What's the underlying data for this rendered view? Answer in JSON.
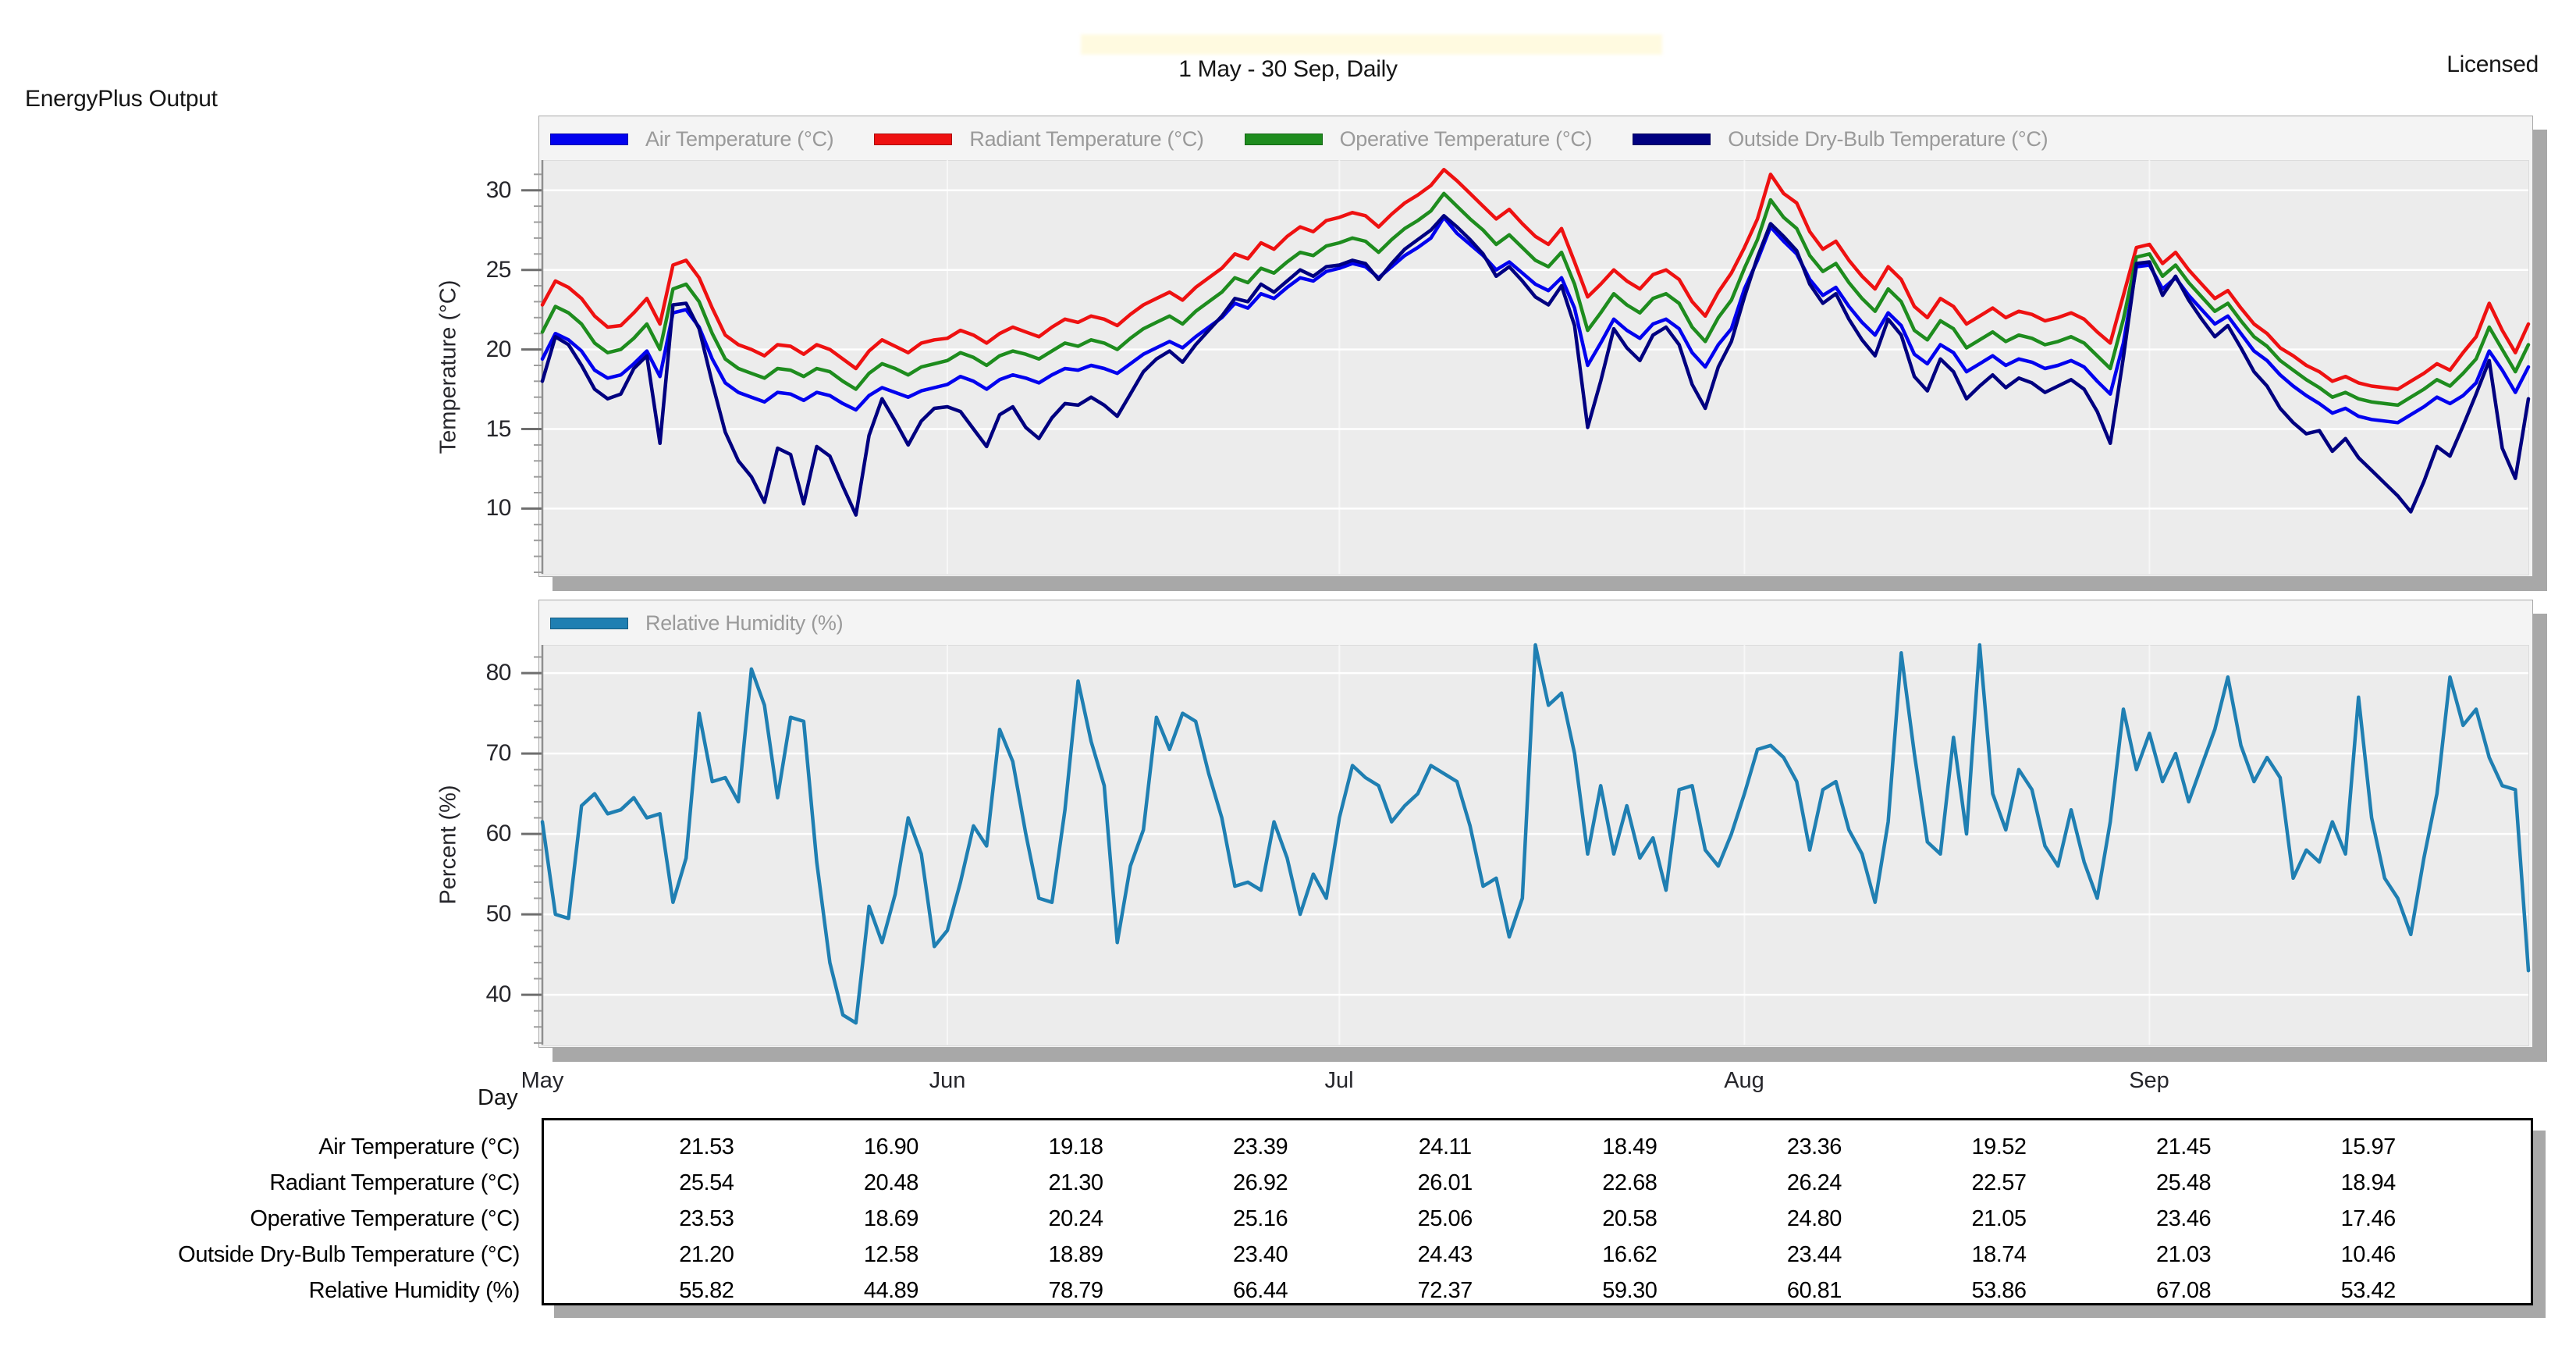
{
  "header": {
    "app_label": "EnergyPlus Output",
    "period_title": "1 May - 30 Sep, Daily",
    "license_status": "Licensed"
  },
  "x_axis": {
    "title": "Day",
    "tick_labels": [
      "May",
      "Jun",
      "Jul",
      "Aug",
      "Sep"
    ]
  },
  "table": {
    "rows": [
      {
        "label": "Air Temperature (°C)",
        "values": [
          "21.53",
          "16.90",
          "19.18",
          "23.39",
          "24.11",
          "18.49",
          "23.36",
          "19.52",
          "21.45",
          "15.97"
        ]
      },
      {
        "label": "Radiant Temperature (°C)",
        "values": [
          "25.54",
          "20.48",
          "21.30",
          "26.92",
          "26.01",
          "22.68",
          "26.24",
          "22.57",
          "25.48",
          "18.94"
        ]
      },
      {
        "label": "Operative Temperature (°C)",
        "values": [
          "23.53",
          "18.69",
          "20.24",
          "25.16",
          "25.06",
          "20.58",
          "24.80",
          "21.05",
          "23.46",
          "17.46"
        ]
      },
      {
        "label": "Outside Dry-Bulb Temperature (°C)",
        "values": [
          "21.20",
          "12.58",
          "18.89",
          "23.40",
          "24.43",
          "16.62",
          "23.44",
          "18.74",
          "21.03",
          "10.46"
        ]
      },
      {
        "label": "Relative Humidity (%)",
        "values": [
          "55.82",
          "44.89",
          "78.79",
          "66.44",
          "72.37",
          "59.30",
          "60.81",
          "53.86",
          "67.08",
          "53.42"
        ]
      }
    ]
  },
  "chart_data": [
    {
      "type": "line",
      "title": "",
      "legend_position": "top-left",
      "grid": true,
      "x": {
        "unit": "day",
        "start": "1 May",
        "end": "30 Sep",
        "days_total": 153,
        "month_start_day_index": [
          0,
          31,
          61,
          92,
          123
        ],
        "month_labels": [
          "May",
          "Jun",
          "Jul",
          "Aug",
          "Sep"
        ]
      },
      "y_axis": {
        "title": "Temperature (°C)",
        "ticks": [
          30,
          25,
          20,
          15,
          10
        ],
        "range": [
          5.9,
          31.9
        ],
        "minor_step": 1
      },
      "series": [
        {
          "name": "Air Temperature (°C)",
          "color": "#0202ee",
          "values": [
            19.4,
            21.0,
            20.6,
            19.9,
            18.7,
            18.2,
            18.4,
            19.1,
            19.9,
            18.3,
            22.3,
            22.5,
            21.4,
            19.4,
            17.9,
            17.3,
            17.0,
            16.7,
            17.3,
            17.2,
            16.8,
            17.3,
            17.1,
            16.6,
            16.2,
            17.1,
            17.6,
            17.3,
            17.0,
            17.4,
            17.6,
            17.8,
            18.3,
            18.0,
            17.5,
            18.1,
            18.4,
            18.2,
            17.9,
            18.4,
            18.8,
            18.7,
            19.0,
            18.8,
            18.5,
            19.1,
            19.7,
            20.1,
            20.5,
            20.1,
            20.8,
            21.4,
            22.0,
            22.9,
            22.6,
            23.5,
            23.2,
            23.9,
            24.5,
            24.3,
            24.9,
            25.1,
            25.4,
            25.2,
            24.5,
            25.2,
            25.9,
            26.4,
            27.0,
            28.3,
            27.3,
            26.6,
            25.9,
            25.0,
            25.5,
            24.8,
            24.1,
            23.7,
            24.5,
            22.6,
            19.0,
            20.4,
            21.9,
            21.2,
            20.7,
            21.6,
            21.9,
            21.3,
            19.8,
            18.9,
            20.3,
            21.3,
            23.8,
            25.6,
            27.7,
            26.8,
            26.0,
            24.4,
            23.4,
            23.9,
            22.7,
            21.7,
            20.9,
            22.3,
            21.5,
            19.7,
            19.1,
            20.3,
            19.8,
            18.6,
            19.1,
            19.6,
            19.0,
            19.4,
            19.2,
            18.8,
            19.0,
            19.3,
            18.9,
            18.0,
            17.2,
            20.4,
            25.2,
            25.3,
            23.8,
            24.5,
            23.4,
            22.5,
            21.6,
            22.1,
            21.0,
            19.9,
            19.3,
            18.4,
            17.7,
            17.1,
            16.6,
            16.0,
            16.3,
            15.8,
            15.6,
            15.5,
            15.4,
            15.9,
            16.4,
            17.0,
            16.6,
            17.1,
            17.9,
            19.9,
            18.7,
            17.3,
            18.9
          ]
        },
        {
          "name": "Radiant Temperature (°C)",
          "color": "#ee1111",
          "values": [
            22.8,
            24.3,
            23.9,
            23.2,
            22.1,
            21.4,
            21.5,
            22.3,
            23.2,
            21.6,
            25.3,
            25.6,
            24.5,
            22.6,
            20.9,
            20.3,
            20.0,
            19.6,
            20.3,
            20.2,
            19.7,
            20.3,
            20.0,
            19.4,
            18.8,
            19.9,
            20.6,
            20.2,
            19.8,
            20.4,
            20.6,
            20.7,
            21.2,
            20.9,
            20.4,
            21.0,
            21.4,
            21.1,
            20.8,
            21.4,
            21.9,
            21.7,
            22.1,
            21.9,
            21.5,
            22.2,
            22.8,
            23.2,
            23.6,
            23.1,
            23.9,
            24.5,
            25.1,
            26.0,
            25.7,
            26.7,
            26.3,
            27.1,
            27.7,
            27.4,
            28.1,
            28.3,
            28.6,
            28.4,
            27.7,
            28.5,
            29.2,
            29.7,
            30.3,
            31.3,
            30.6,
            29.8,
            29.0,
            28.2,
            28.8,
            27.9,
            27.1,
            26.6,
            27.6,
            25.5,
            23.3,
            24.1,
            25.0,
            24.3,
            23.8,
            24.7,
            25.0,
            24.4,
            23.0,
            22.1,
            23.6,
            24.8,
            26.4,
            28.2,
            31.0,
            29.8,
            29.2,
            27.4,
            26.3,
            26.8,
            25.6,
            24.6,
            23.8,
            25.2,
            24.4,
            22.7,
            22.0,
            23.2,
            22.7,
            21.6,
            22.1,
            22.6,
            22.0,
            22.4,
            22.2,
            21.8,
            22.0,
            22.3,
            21.9,
            21.1,
            20.4,
            23.4,
            26.4,
            26.6,
            25.4,
            26.1,
            25.0,
            24.1,
            23.2,
            23.7,
            22.6,
            21.6,
            21.0,
            20.1,
            19.6,
            19.0,
            18.6,
            18.0,
            18.3,
            17.9,
            17.7,
            17.6,
            17.5,
            18.0,
            18.5,
            19.1,
            18.7,
            19.8,
            20.8,
            22.9,
            21.2,
            19.8,
            21.6
          ]
        },
        {
          "name": "Operative Temperature (°C)",
          "color": "#1e8c1e",
          "values": [
            21.1,
            22.7,
            22.3,
            21.6,
            20.4,
            19.8,
            20.0,
            20.7,
            21.6,
            20.0,
            23.8,
            24.1,
            23.0,
            21.0,
            19.4,
            18.8,
            18.5,
            18.2,
            18.8,
            18.7,
            18.3,
            18.8,
            18.6,
            18.0,
            17.5,
            18.5,
            19.1,
            18.8,
            18.4,
            18.9,
            19.1,
            19.3,
            19.8,
            19.5,
            19.0,
            19.6,
            19.9,
            19.7,
            19.4,
            19.9,
            20.4,
            20.2,
            20.6,
            20.4,
            20.0,
            20.7,
            21.3,
            21.7,
            22.1,
            21.6,
            22.4,
            23.0,
            23.6,
            24.5,
            24.2,
            25.1,
            24.8,
            25.5,
            26.1,
            25.9,
            26.5,
            26.7,
            27.0,
            26.8,
            26.1,
            26.9,
            27.6,
            28.1,
            28.7,
            29.8,
            29.0,
            28.2,
            27.5,
            26.6,
            27.2,
            26.4,
            25.6,
            25.2,
            26.1,
            24.1,
            21.2,
            22.3,
            23.5,
            22.8,
            22.3,
            23.2,
            23.5,
            22.9,
            21.4,
            20.5,
            22.0,
            23.1,
            25.1,
            26.9,
            29.4,
            28.3,
            27.6,
            25.9,
            24.9,
            25.4,
            24.2,
            23.2,
            22.4,
            23.8,
            23.0,
            21.2,
            20.6,
            21.8,
            21.3,
            20.1,
            20.6,
            21.1,
            20.5,
            20.9,
            20.7,
            20.3,
            20.5,
            20.8,
            20.4,
            19.6,
            18.8,
            21.9,
            25.8,
            26.0,
            24.6,
            25.3,
            24.2,
            23.3,
            22.4,
            22.9,
            21.8,
            20.8,
            20.2,
            19.3,
            18.7,
            18.1,
            17.6,
            17.0,
            17.3,
            16.9,
            16.7,
            16.6,
            16.5,
            17.0,
            17.5,
            18.1,
            17.7,
            18.5,
            19.4,
            21.4,
            20.0,
            18.6,
            20.3
          ]
        },
        {
          "name": "Outside Dry-Bulb Temperature (°C)",
          "color": "#000080",
          "values": [
            18.0,
            20.8,
            20.3,
            19.0,
            17.5,
            16.9,
            17.2,
            18.8,
            19.6,
            14.1,
            22.8,
            22.9,
            21.3,
            17.9,
            14.8,
            13.0,
            12.0,
            10.4,
            13.8,
            13.4,
            10.3,
            13.9,
            13.3,
            11.4,
            9.6,
            14.6,
            16.9,
            15.5,
            14.0,
            15.5,
            16.3,
            16.4,
            16.1,
            15.0,
            13.9,
            15.9,
            16.4,
            15.1,
            14.4,
            15.7,
            16.6,
            16.5,
            17.0,
            16.5,
            15.8,
            17.2,
            18.6,
            19.4,
            19.9,
            19.2,
            20.3,
            21.2,
            22.1,
            23.2,
            23.0,
            24.1,
            23.6,
            24.3,
            25.0,
            24.6,
            25.2,
            25.3,
            25.6,
            25.4,
            24.4,
            25.4,
            26.3,
            26.9,
            27.5,
            28.4,
            27.7,
            26.9,
            26.0,
            24.6,
            25.2,
            24.3,
            23.3,
            22.8,
            24.0,
            21.5,
            15.1,
            18.0,
            21.3,
            20.1,
            19.3,
            20.9,
            21.4,
            20.3,
            17.8,
            16.3,
            18.9,
            20.5,
            23.3,
            25.8,
            27.9,
            27.1,
            26.2,
            24.1,
            22.9,
            23.5,
            21.9,
            20.6,
            19.6,
            21.9,
            20.9,
            18.3,
            17.4,
            19.4,
            18.6,
            16.9,
            17.7,
            18.4,
            17.6,
            18.2,
            17.9,
            17.3,
            17.7,
            18.1,
            17.5,
            16.1,
            14.1,
            19.5,
            25.4,
            25.5,
            23.4,
            24.6,
            23.1,
            21.9,
            20.8,
            21.5,
            20.1,
            18.6,
            17.7,
            16.3,
            15.4,
            14.7,
            14.9,
            13.6,
            14.4,
            13.2,
            12.4,
            11.6,
            10.8,
            9.8,
            11.7,
            13.9,
            13.3,
            15.2,
            17.2,
            19.3,
            13.8,
            11.9,
            16.9
          ]
        }
      ]
    },
    {
      "type": "line",
      "title": "",
      "legend_position": "top-left",
      "grid": true,
      "x": {
        "unit": "day",
        "start": "1 May",
        "end": "30 Sep",
        "days_total": 153,
        "month_start_day_index": [
          0,
          31,
          61,
          92,
          123
        ],
        "month_labels": [
          "May",
          "Jun",
          "Jul",
          "Aug",
          "Sep"
        ]
      },
      "y_axis": {
        "title": "Percent (%)",
        "ticks": [
          80,
          70,
          60,
          50,
          40
        ],
        "range": [
          33.8,
          83.5
        ],
        "minor_step": 2
      },
      "series": [
        {
          "name": "Relative Humidity (%)",
          "color": "#1f7fb2",
          "values": [
            61.5,
            50.0,
            49.5,
            63.5,
            65.0,
            62.5,
            63.0,
            64.5,
            62.0,
            62.5,
            51.5,
            57.0,
            75.0,
            66.5,
            67.0,
            64.0,
            80.5,
            76.0,
            64.5,
            74.5,
            74.0,
            56.5,
            44.0,
            37.5,
            36.5,
            51.0,
            46.5,
            52.5,
            62.0,
            57.5,
            46.0,
            48.0,
            54.0,
            61.0,
            58.5,
            73.0,
            69.0,
            60.0,
            52.0,
            51.5,
            63.0,
            79.0,
            71.5,
            66.0,
            46.5,
            56.0,
            60.5,
            74.5,
            70.5,
            75.0,
            74.0,
            67.5,
            62.0,
            53.5,
            54.0,
            53.0,
            61.5,
            57.0,
            50.0,
            55.0,
            52.0,
            62.0,
            68.5,
            67.0,
            66.0,
            61.5,
            63.5,
            65.0,
            68.5,
            67.5,
            66.5,
            61.0,
            53.5,
            54.5,
            47.2,
            52.0,
            83.5,
            76.0,
            77.5,
            70.0,
            57.5,
            66.0,
            57.5,
            63.5,
            57.0,
            59.5,
            53.0,
            65.5,
            66.0,
            58.0,
            56.0,
            60.0,
            65.0,
            70.5,
            71.0,
            69.5,
            66.5,
            58.0,
            65.5,
            66.5,
            60.5,
            57.5,
            51.5,
            61.5,
            82.5,
            70.0,
            59.0,
            57.5,
            72.0,
            60.0,
            83.5,
            65.0,
            60.5,
            68.0,
            65.5,
            58.5,
            56.0,
            63.0,
            56.5,
            52.0,
            61.5,
            75.5,
            68.0,
            72.5,
            66.5,
            70.0,
            64.0,
            68.5,
            73.0,
            79.5,
            71.0,
            66.5,
            69.5,
            67.0,
            54.5,
            58.0,
            56.5,
            61.5,
            57.5,
            77.0,
            62.0,
            54.5,
            52.0,
            47.5,
            57.0,
            65.0,
            79.5,
            73.5,
            75.5,
            69.5,
            66.0,
            65.5,
            43.0
          ]
        }
      ]
    }
  ]
}
